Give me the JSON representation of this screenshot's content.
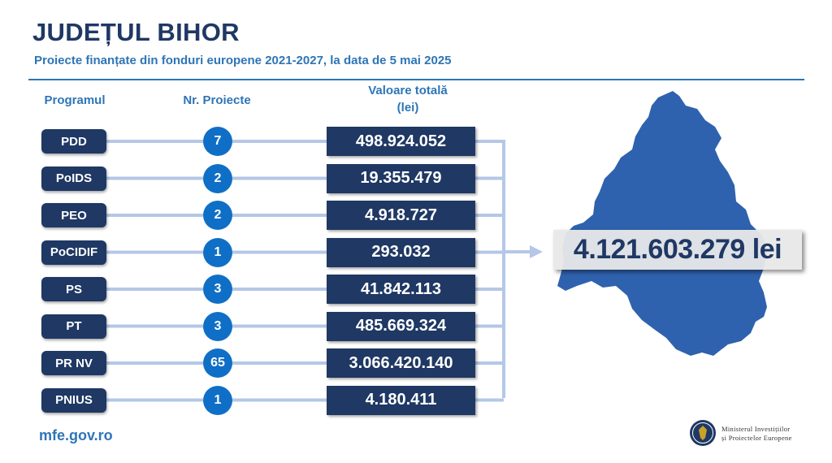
{
  "title": "JUDEȚUL BIHOR",
  "subtitle": "Proiecte finanțate din fonduri europene 2021-2027, la data de 5 mai 2025",
  "headers": {
    "program": "Programul",
    "projects": "Nr. Proiecte",
    "value_line1": "Valoare totală",
    "value_line2": "(lei)"
  },
  "rows": [
    {
      "program": "PDD",
      "projects": "7",
      "value": "498.924.052"
    },
    {
      "program": "PoIDS",
      "projects": "2",
      "value": "19.355.479"
    },
    {
      "program": "PEO",
      "projects": "2",
      "value": "4.918.727"
    },
    {
      "program": "PoCIDIF",
      "projects": "1",
      "value": "293.032"
    },
    {
      "program": "PS",
      "projects": "3",
      "value": "41.842.113"
    },
    {
      "program": "PT",
      "projects": "3",
      "value": "485.669.324"
    },
    {
      "program": "PR NV",
      "projects": "65",
      "value": "3.066.420.140"
    },
    {
      "program": "PNIUS",
      "projects": "1",
      "value": "4.180.411"
    }
  ],
  "total": "4.121.603.279 lei",
  "website": "mfe.gov.ro",
  "ministry_line1": "Ministerul Investițiilor",
  "ministry_line2": "și Proiectelor Europene",
  "colors": {
    "navy": "#1f3864",
    "accent_blue": "#2e75b6",
    "circle_blue": "#0f6fc6",
    "map_blue": "#2f62ae",
    "connector": "#b4c7e7"
  },
  "icons": [
    "bihor-county-map",
    "arrow-right-icon",
    "ministry-emblem-icon"
  ]
}
